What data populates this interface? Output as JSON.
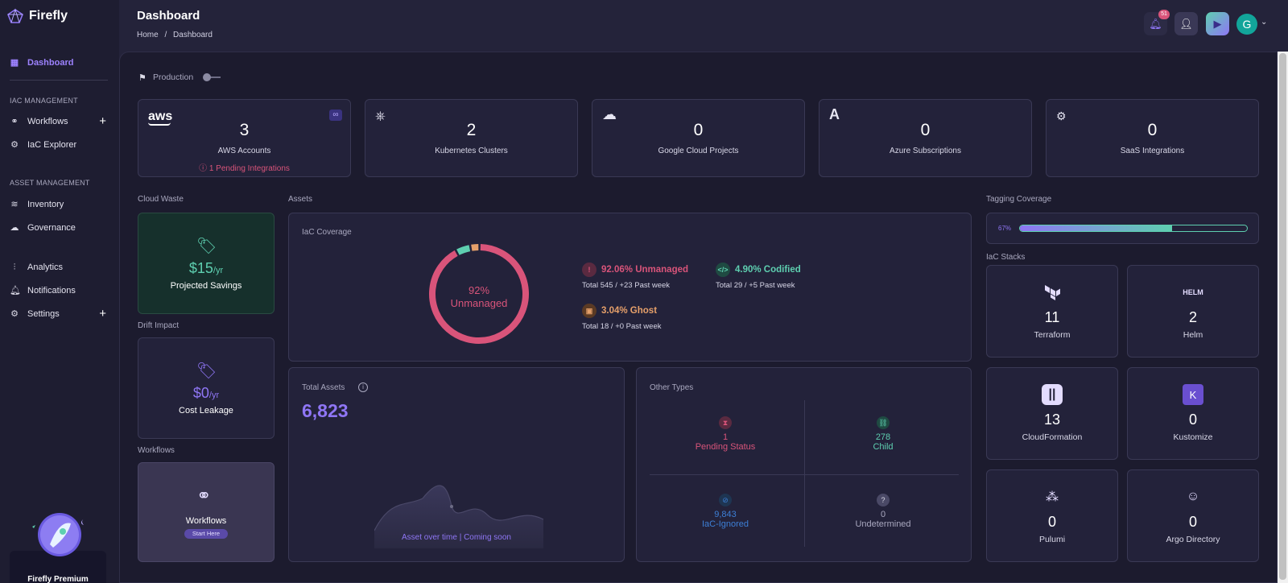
{
  "app": {
    "name": "Firefly"
  },
  "header": {
    "title": "Dashboard",
    "breadcrumb": {
      "home": "Home",
      "sep": "/",
      "current": "Dashboard"
    },
    "notifications_count": "51",
    "avatar_letter": "G"
  },
  "sidebar": {
    "dashboard": "Dashboard",
    "iac_section": "IAC MANAGEMENT",
    "workflows": "Workflows",
    "iac_explorer": "IaC Explorer",
    "asset_section": "ASSET MANAGEMENT",
    "inventory": "Inventory",
    "governance": "Governance",
    "analytics": "Analytics",
    "notifications": "Notifications",
    "settings": "Settings",
    "premium": "Firefly Premium"
  },
  "env": {
    "label": "Production"
  },
  "clouds": [
    {
      "icon": "aws-logo-icon",
      "value": "3",
      "label": "AWS Accounts",
      "pending": "1 Pending Integrations"
    },
    {
      "icon": "kubernetes-icon",
      "value": "2",
      "label": "Kubernetes Clusters"
    },
    {
      "icon": "google-cloud-icon",
      "value": "0",
      "label": "Google Cloud Projects"
    },
    {
      "icon": "azure-icon",
      "value": "0",
      "label": "Azure Subscriptions"
    },
    {
      "icon": "saas-icon",
      "value": "0",
      "label": "SaaS Integrations"
    }
  ],
  "cloud_waste": {
    "section": "Cloud Waste",
    "value": "$15",
    "unit": "/yr",
    "label": "Projected Savings"
  },
  "drift_impact": {
    "section": "Drift Impact",
    "value": "$0",
    "unit": "/yr",
    "label": "Cost Leakage"
  },
  "workflows_card": {
    "section": "Workflows",
    "label": "Workflows",
    "button": "Start Here"
  },
  "assets": {
    "section": "Assets",
    "iac_coverage": {
      "title": "IaC Coverage",
      "center_pct": "92%",
      "center_label": "Unmanaged",
      "unmanaged": {
        "title": "92.06% Unmanaged",
        "sub": "Total 545 / +23 Past week",
        "pct": 92.06
      },
      "codified": {
        "title": "4.90% Codified",
        "sub": "Total 29 / +5 Past week",
        "pct": 4.9
      },
      "ghost": {
        "title": "3.04% Ghost",
        "sub": "Total 18 / +0 Past week",
        "pct": 3.04
      }
    },
    "total_assets": {
      "title": "Total Assets",
      "value": "6,823",
      "chart_label": "Asset over time | Coming soon"
    },
    "other_types": {
      "title": "Other Types",
      "pending": {
        "value": "1",
        "label": "Pending Status"
      },
      "child": {
        "value": "278",
        "label": "Child"
      },
      "ignored": {
        "value": "9,843",
        "label": "IaC-Ignored"
      },
      "undetermined": {
        "value": "0",
        "label": "Undetermined"
      }
    }
  },
  "tagging": {
    "section": "Tagging Coverage",
    "pct_label": "67%",
    "pct": 67
  },
  "stacks": {
    "section": "IaC Stacks",
    "items": [
      {
        "icon": "terraform-icon",
        "value": "11",
        "label": "Terraform"
      },
      {
        "icon": "helm-icon",
        "value": "2",
        "label": "Helm"
      },
      {
        "icon": "cloudformation-icon",
        "value": "13",
        "label": "CloudFormation"
      },
      {
        "icon": "kustomize-icon",
        "value": "0",
        "label": "Kustomize"
      },
      {
        "icon": "pulumi-icon",
        "value": "0",
        "label": "Pulumi"
      },
      {
        "icon": "argo-icon",
        "value": "0",
        "label": "Argo Directory"
      }
    ]
  },
  "colors": {
    "unmanaged": "#d9547a",
    "codified": "#5ecfb0",
    "ghost": "#e6a06a",
    "accent": "#8f76f5"
  }
}
